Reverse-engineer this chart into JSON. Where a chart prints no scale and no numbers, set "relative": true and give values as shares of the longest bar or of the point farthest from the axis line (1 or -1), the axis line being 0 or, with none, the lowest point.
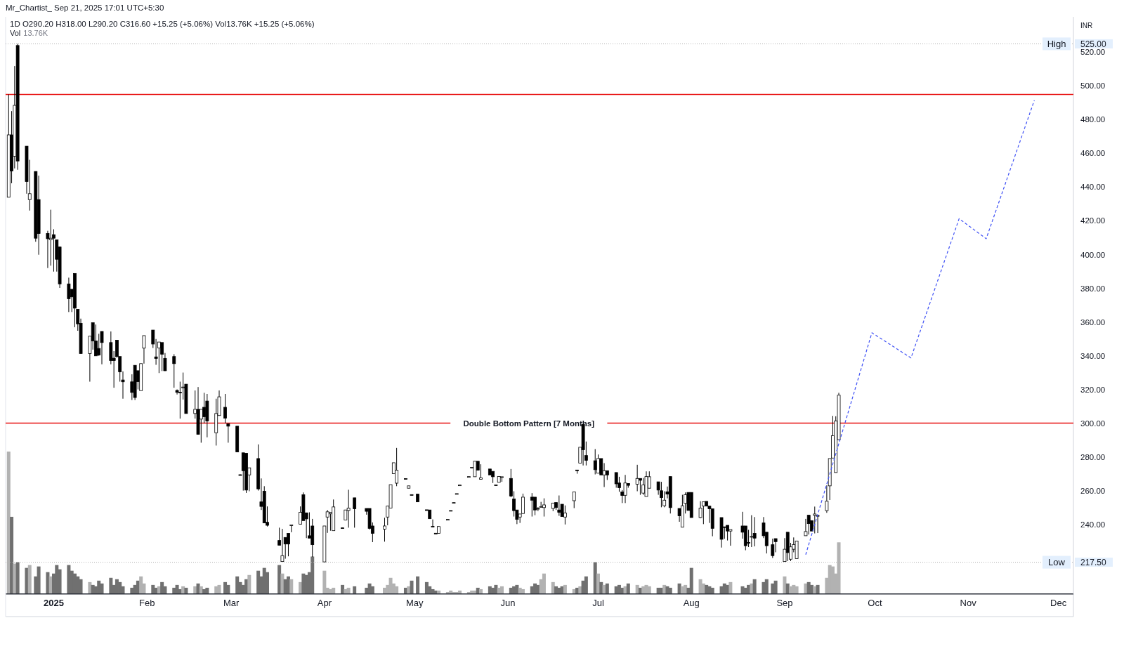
{
  "chart_data": [
    {
      "type": "candlestick",
      "title": "1D  O290.20  H318.00  L290.20  C316.60  +15.25 (+5.06%)  Vol13.76K  +15.25 (+5.06%)",
      "annotations": [
        "Mr_Chartist_ Sep 21, 2025 17:01 UTC+5:30"
      ],
      "ylabel": "INR",
      "x": [
        "2024-12-17",
        "2024-12-18",
        "2024-12-19",
        "2024-12-20",
        "2024-12-23",
        "2024-12-24",
        "2024-12-26",
        "2024-12-27",
        "2024-12-30",
        "2024-12-31",
        "2025-01-01",
        "2025-01-02",
        "2025-01-03",
        "2025-01-06",
        "2025-01-07",
        "2025-01-08",
        "2025-01-09",
        "2025-01-10",
        "2025-01-13",
        "2025-01-14",
        "2025-01-15",
        "2025-01-16",
        "2025-01-17",
        "2025-01-20",
        "2025-01-21",
        "2025-01-22",
        "2025-01-23",
        "2025-01-24",
        "2025-01-27",
        "2025-01-28",
        "2025-01-29",
        "2025-01-30",
        "2025-01-31",
        "2025-02-03",
        "2025-02-04",
        "2025-02-05",
        "2025-02-06",
        "2025-02-07",
        "2025-02-10",
        "2025-02-11",
        "2025-02-12",
        "2025-02-13",
        "2025-02-14",
        "2025-02-17",
        "2025-02-18",
        "2025-02-19",
        "2025-02-20",
        "2025-02-21",
        "2025-02-24",
        "2025-02-25",
        "2025-02-27",
        "2025-02-28",
        "2025-03-03",
        "2025-03-04",
        "2025-03-05",
        "2025-03-06",
        "2025-03-07",
        "2025-03-10",
        "2025-03-11",
        "2025-03-12",
        "2025-03-13",
        "2025-03-17",
        "2025-03-18",
        "2025-03-19",
        "2025-03-20",
        "2025-03-21",
        "2025-03-24",
        "2025-03-25",
        "2025-03-26",
        "2025-03-27",
        "2025-03-28",
        "2025-04-01",
        "2025-04-02",
        "2025-04-03",
        "2025-04-04",
        "2025-04-07",
        "2025-04-08",
        "2025-04-09",
        "2025-04-11",
        "2025-04-15",
        "2025-04-16",
        "2025-04-17",
        "2025-04-21",
        "2025-04-22",
        "2025-04-23",
        "2025-04-24",
        "2025-04-25",
        "2025-04-28",
        "2025-04-29",
        "2025-04-30",
        "2025-05-02",
        "2025-05-05",
        "2025-05-06",
        "2025-05-07",
        "2025-05-08",
        "2025-05-09",
        "2025-05-12",
        "2025-05-13",
        "2025-05-14",
        "2025-05-15",
        "2025-05-16",
        "2025-05-19",
        "2025-05-20",
        "2025-05-21",
        "2025-05-22",
        "2025-05-23",
        "2025-05-26",
        "2025-05-27",
        "2025-05-28",
        "2025-05-29",
        "2025-05-30",
        "2025-06-02",
        "2025-06-03",
        "2025-06-04",
        "2025-06-05",
        "2025-06-06",
        "2025-06-09",
        "2025-06-10",
        "2025-06-11",
        "2025-06-12",
        "2025-06-13",
        "2025-06-16",
        "2025-06-17",
        "2025-06-18",
        "2025-06-19",
        "2025-06-20",
        "2025-06-23",
        "2025-06-24",
        "2025-06-25",
        "2025-06-26",
        "2025-06-27",
        "2025-06-30",
        "2025-07-01",
        "2025-07-02",
        "2025-07-03",
        "2025-07-04",
        "2025-07-07",
        "2025-07-08",
        "2025-07-09",
        "2025-07-10",
        "2025-07-11",
        "2025-07-14",
        "2025-07-15",
        "2025-07-16",
        "2025-07-17",
        "2025-07-18",
        "2025-07-21",
        "2025-07-22",
        "2025-07-23",
        "2025-07-24",
        "2025-07-25",
        "2025-07-28",
        "2025-07-29",
        "2025-07-30",
        "2025-07-31",
        "2025-08-01",
        "2025-08-04",
        "2025-08-05",
        "2025-08-06",
        "2025-08-07",
        "2025-08-08",
        "2025-08-11",
        "2025-08-12",
        "2025-08-13",
        "2025-08-14",
        "2025-08-18",
        "2025-08-19",
        "2025-08-20",
        "2025-08-21",
        "2025-08-22",
        "2025-08-25",
        "2025-08-26",
        "2025-08-28",
        "2025-08-29",
        "2025-09-01",
        "2025-09-02",
        "2025-09-03",
        "2025-09-04",
        "2025-09-05",
        "2025-09-08",
        "2025-09-09",
        "2025-09-10",
        "2025-09-11",
        "2025-09-12",
        "2025-09-15",
        "2025-09-16",
        "2025-09-17",
        "2025-09-18",
        "2025-09-19"
      ],
      "xlim": [
        "2024-12-16",
        "2025-12-06"
      ],
      "xticks": [
        {
          "value": "2025-01-01",
          "label": "2025"
        },
        {
          "value": "2025-02-01",
          "label": "Feb"
        },
        {
          "value": "2025-03-01",
          "label": "Mar"
        },
        {
          "value": "2025-04-01",
          "label": "Apr"
        },
        {
          "value": "2025-05-01",
          "label": "May"
        },
        {
          "value": "2025-06-01",
          "label": "Jun"
        },
        {
          "value": "2025-07-01",
          "label": "Jul"
        },
        {
          "value": "2025-08-01",
          "label": "Aug"
        },
        {
          "value": "2025-09-01",
          "label": "Sep"
        },
        {
          "value": "2025-10-01",
          "label": "Oct"
        },
        {
          "value": "2025-11-01",
          "label": "Nov"
        },
        {
          "value": "2025-12-01",
          "label": "Dec"
        }
      ],
      "ylim": [
        199,
        541
      ],
      "yticks": [
        {
          "value": 217.5,
          "label": "217.50"
        },
        {
          "value": 240,
          "label": "240.00"
        },
        {
          "value": 260,
          "label": "260.00"
        },
        {
          "value": 280,
          "label": "280.00"
        },
        {
          "value": 300,
          "label": "300.00"
        },
        {
          "value": 320,
          "label": "320.00"
        },
        {
          "value": 340,
          "label": "340.00"
        },
        {
          "value": 360,
          "label": "360.00"
        },
        {
          "value": 380,
          "label": "380.00"
        },
        {
          "value": 400,
          "label": "400.00"
        },
        {
          "value": 420,
          "label": "420.00"
        },
        {
          "value": 440,
          "label": "440.00"
        },
        {
          "value": 460,
          "label": "460.00"
        },
        {
          "value": 480,
          "label": "480.00"
        },
        {
          "value": 500,
          "label": "500.00"
        },
        {
          "value": 520,
          "label": "520.00"
        },
        {
          "value": 525,
          "label": "525.00"
        }
      ],
      "ref_lines": [
        {
          "axis": "y",
          "value": 495,
          "color": "#e81010"
        },
        {
          "axis": "y",
          "value": 300,
          "label": "Double Bottom Pattern [7 Months]",
          "color": "#e81010"
        },
        {
          "axis": "y",
          "value": 525,
          "label": "High",
          "color": "#b0b0b0",
          "line_style": "dotted"
        },
        {
          "axis": "y",
          "value": 217.5,
          "label": "Low",
          "color": "#b0b0b0",
          "line_style": "dotted"
        }
      ],
      "series": [
        {
          "type": "candlestick",
          "color": "#000000",
          "ohlc": [
            [
              434,
              495,
              434,
              471
            ],
            [
              471,
              485.1,
              442.3,
              449.6
            ],
            [
              458.3,
              511.8,
              451.1,
              488.5
            ],
            [
              524,
              525,
              450.3,
              455.5
            ],
            [
              464.3,
              464.3,
              436.1,
              443.3
            ],
            [
              432.6,
              456.2,
              426.1,
              436.1
            ],
            [
              449.3,
              449.3,
              407.6,
              409.7
            ],
            [
              432.6,
              446.8,
              399.9,
              412.5
            ],
            [
              412.5,
              414.1,
              392,
              409.4
            ],
            [
              408.7,
              426.6,
              393.4,
              409.7
            ],
            [
              411.8,
              415,
              389.9,
              409.7
            ],
            [
              408.7,
              408.7,
              389.9,
              397.2
            ],
            [
              404.5,
              404.5,
              380.2,
              382.6
            ],
            [
              382.6,
              386.3,
              365.9,
              373.8
            ],
            [
              379.4,
              379.4,
              365.9,
              374.9
            ],
            [
              388.8,
              388.8,
              356.9,
              368.2
            ],
            [
              367.5,
              367.5,
              354.8,
              358.9
            ],
            [
              359.2,
              362,
              341.3,
              341.3
            ],
            [
              341.3,
              351.6,
              324.6,
              351.6
            ],
            [
              359.6,
              359.6,
              343.6,
              348.8
            ],
            [
              348.8,
              358.5,
              339.9,
              339.9
            ],
            [
              344.3,
              353,
              339.9,
              340.4
            ],
            [
              354.4,
              354.4,
              334.9,
              347.8
            ],
            [
              347.8,
              354.4,
              334.9,
              337.1
            ],
            [
              338.5,
              342.7,
              321,
              337.1
            ],
            [
              349.2,
              349.2,
              338.8,
              339.5
            ],
            [
              339.5,
              339.5,
              324.6,
              330.4
            ],
            [
              325.6,
              330.7,
              314.5,
              324.5
            ],
            [
              324.5,
              329,
              313.7,
              318.2
            ],
            [
              334.3,
              334.3,
              313.7,
              315.2
            ],
            [
              331.1,
              331.1,
              320,
              324.6
            ],
            [
              319.3,
              335.3,
              319.3,
              335.3
            ],
            [
              344.5,
              351.9,
              335.3,
              351.9
            ],
            [
              355.2,
              355.2,
              344.6,
              346.9
            ],
            [
              339.3,
              349.9,
              334.6,
              338.4
            ],
            [
              344.6,
              348.1,
              329.7,
              348.1
            ],
            [
              347.8,
              347.8,
              330.9,
              340.9
            ],
            [
              338.4,
              341.6,
              330.9,
              331.1
            ],
            [
              339.5,
              340.9,
              321,
              335.3
            ],
            [
              319.4,
              320,
              317,
              318.3
            ],
            [
              318.4,
              324.6,
              302.7,
              318.2
            ],
            [
              321.2,
              330,
              314,
              321.4
            ],
            [
              323.1,
              323.1,
              305.7,
              305.7
            ],
            [
              305.7,
              319.4,
              302.7,
              308.2
            ],
            [
              308.2,
              321.4,
              293.4,
              293.4
            ],
            [
              302.4,
              308.2,
              288.4,
              308.2
            ],
            [
              309.4,
              318,
              299.9,
              303.8
            ],
            [
              313.1,
              317.3,
              291.6,
              301.3
            ],
            [
              294.3,
              314.5,
              286.7,
              305.7
            ],
            [
              304.5,
              319.4,
              304.5,
              315.6
            ],
            [
              309.4,
              317.3,
              299.9,
              303
            ],
            [
              299.6,
              299.6,
              288.4,
              298.2
            ],
            [
              298.2,
              298.2,
              282.9,
              282.9
            ],
            [
              269.4,
              269.6,
              269,
              269.2
            ],
            [
              282.4,
              282.4,
              260,
              271.8
            ],
            [
              282.1,
              282.1,
              258.6,
              260.3
            ],
            [
              269.3,
              273.5,
              259.6,
              273.5
            ],
            [
              279,
              287.4,
              260,
              261
            ],
            [
              253.3,
              267.2,
              248.5,
              250.6
            ],
            [
              259.6,
              262.6,
              240.8,
              240.8
            ],
            [
              241.2,
              250.6,
              238.7,
              239.4
            ],
            [
              230.4,
              238,
              227.6,
              227.6
            ],
            [
              217.9,
              237.3,
              217.9,
              221.4
            ],
            [
              232.2,
              232.2,
              219.6,
              228.3
            ],
            [
              234.6,
              234.6,
              221,
              228.3
            ],
            [
              239.2,
              239.6,
              235.3,
              239.6
            ],
            [
              240.1,
              250.6,
              240.1,
              247.1
            ],
            [
              257.5,
              258.9,
              242.2,
              242.2
            ],
            [
              246.8,
              246.8,
              231.8,
              243.2
            ],
            [
              233.2,
              247.1,
              231.8,
              231.8
            ],
            [
              239,
              243.2,
              220.6,
              227.9
            ],
            [
              217.7,
              239,
              217.5,
              239
            ],
            [
              244.3,
              248.5,
              234.9,
              247.4
            ],
            [
              246.2,
              247.1,
              236.2,
              247.1
            ],
            [
              236.2,
              254.7,
              236.2,
              250.3
            ],
            [
              237.9,
              237.9,
              237.7,
              237.7
            ],
            [
              242.5,
              248.5,
              242.5,
              248.5
            ],
            [
              248.2,
              260.5,
              238,
              249.6
            ],
            [
              255.7,
              255.7,
              238,
              249.2
            ],
            [
              249.4,
              249.4,
              245.7,
              247.7
            ],
            [
              249.4,
              249.4,
              236.9,
              237.6
            ],
            [
              239,
              241.1,
              229.4,
              234.6
            ],
            [
              237.1,
              243.9,
              229.7,
              239
            ],
            [
              244.3,
              250.8,
              239.4,
              250.8
            ],
            [
              249.6,
              263.5,
              249.6,
              263.5
            ],
            [
              270,
              276.5,
              270,
              276.5
            ],
            [
              264.4,
              285.3,
              262.6,
              272.1
            ],
            [
              267.1,
              267.1,
              266.9,
              266.9
            ],
            [
              261.4,
              262.8,
              261.4,
              262.8
            ],
            [
              257.6,
              257.6,
              257.5,
              257.5
            ],
            [
              257.9,
              257.9,
              253.3,
              253.3
            ],
            [
              248.6,
              248.6,
              248.5,
              248.5
            ],
            [
              248.5,
              248.5,
              243.3,
              243.3
            ],
            [
              238.8,
              242.9,
              238.7,
              238.7
            ],
            [
              234.7,
              234.7,
              234.6,
              234.6
            ],
            [
              234.6,
              238.7,
              234.6,
              238.7
            ],
            [
              242.8,
              242.9,
              242.8,
              242.9
            ],
            [
              248.1,
              248.2,
              248.1,
              248.2
            ],
            [
              252.8,
              252.9,
              252.8,
              252.9
            ],
            [
              258.1,
              258.2,
              258.1,
              258.2
            ],
            [
              263.2,
              263.3,
              263.2,
              263.3
            ],
            [
              268.2,
              268.3,
              268.2,
              268.3
            ],
            [
              273.7,
              273.8,
              273.7,
              273.8
            ],
            [
              268.2,
              277.4,
              268.2,
              277.4
            ],
            [
              277.4,
              277.4,
              272.1,
              272.1
            ],
            [
              266.7,
              275.6,
              266.5,
              267.5
            ],
            [
              272.8,
              272.8,
              269.3,
              269.3
            ],
            [
              271.4,
              271.4,
              264.5,
              268.2
            ],
            [
              263.4,
              263.4,
              263.3,
              263.3
            ],
            [
              264.9,
              268.4,
              264.9,
              268.4
            ],
            [
              268,
              268.2,
              265.2,
              268.2
            ],
            [
              267.2,
              272.8,
              256.1,
              256.8
            ],
            [
              255,
              259.6,
              244.6,
              248.1
            ],
            [
              248.5,
              248.5,
              240.1,
              242.9
            ],
            [
              244.3,
              246.1,
              240.8,
              246.1
            ],
            [
              246.4,
              258.2,
              246.4,
              256.1
            ],
            [
              256.1,
              258.5,
              244.6,
              254.3
            ],
            [
              256.1,
              256.1,
              245.4,
              248.5
            ],
            [
              249.4,
              250.2,
              247.8,
              249.2
            ],
            [
              250.4,
              253.3,
              250.4,
              250.5
            ],
            [
              249.9,
              255.4,
              244.6,
              251.5
            ],
            [
              249.4,
              252.6,
              247.8,
              252.6
            ],
            [
              252.9,
              252.9,
              248.5,
              249.9
            ],
            [
              248.5,
              257.1,
              245,
              247.1
            ],
            [
              251.9,
              251.9,
              244.6,
              244.6
            ],
            [
              244.3,
              251.2,
              239.9,
              246.7
            ],
            [
              254,
              259.2,
              249.6,
              259.2
            ],
            [
              272.2,
              272.2,
              270,
              272.1
            ],
            [
              276.3,
              285.7,
              276.3,
              285.7
            ],
            [
              299.2,
              299.2,
              274.9,
              284.2
            ],
            [
              280.8,
              289.1,
              274.9,
              277.9
            ],
            [
              277.7,
              284.6,
              269.6,
              272.4
            ],
            [
              270.3,
              281.4,
              270.3,
              279
            ],
            [
              279,
              279,
              269.3,
              269.3
            ],
            [
              269.3,
              276.3,
              262.1,
              271.8
            ],
            [
              271.8,
              271.8,
              266.3,
              269.3
            ],
            [
              270.7,
              270.7,
              261.7,
              264
            ],
            [
              264.5,
              268.2,
              259.3,
              261.7
            ],
            [
              259.2,
              260.3,
              252.6,
              257.1
            ],
            [
              257.2,
              269.3,
              252.6,
              264.5
            ],
            [
              264.2,
              264.2,
              261.7,
              263.1
            ],
            [
              263.8,
              275.3,
              259.6,
              267.2
            ],
            [
              267.2,
              267.2,
              257.5,
              266.1
            ],
            [
              258.5,
              267.5,
              257.5,
              263.3
            ],
            [
              256.5,
              271.4,
              256.5,
              268.3
            ],
            [
              261.4,
              271.4,
              261.4,
              268.2
            ],
            [
              265.2,
              265.2,
              257.5,
              260.3
            ],
            [
              259.9,
              265.2,
              250.1,
              255.8
            ],
            [
              251,
              259.6,
              250.1,
              254.3
            ],
            [
              259.3,
              262.4,
              255.4,
              257.9
            ],
            [
              268.3,
              268.3,
              246.4,
              249.9
            ],
            [
              249.4,
              249.4,
              241.5,
              245
            ],
            [
              238.3,
              257.5,
              238.3,
              251
            ],
            [
              252.4,
              258.9,
              246.4,
              257.5
            ],
            [
              258.9,
              258.9,
              248.2,
              248.2
            ],
            [
              258.9,
              258.9,
              244,
              244
            ],
            [
              244,
              253.7,
              243.6,
              249.6
            ],
            [
              250.8,
              253.3,
              240.1,
              253.3
            ],
            [
              253.6,
              253.6,
              250.8,
              250.8
            ],
            [
              250.8,
              250.8,
              240.8,
              249.2
            ],
            [
              249.2,
              249.2,
              232.9,
              237.6
            ],
            [
              244,
              244,
              226.2,
              231.1
            ],
            [
              238.5,
              238.5,
              231.4,
              238.3
            ],
            [
              239.4,
              239.4,
              230.4,
              236
            ],
            [
              236,
              236.9,
              227.3,
              236.9
            ],
            [
              239,
              247.4,
              231.5,
              235.3
            ],
            [
              239,
              239,
              224.6,
              227.3
            ],
            [
              229.2,
              236.7,
              226.5,
              229
            ],
            [
              232.6,
              245.4,
              226.5,
              232.8
            ],
            [
              234.6,
              244.3,
              226.9,
              231.8
            ],
            [
              240.8,
              244.3,
              231.8,
              233.2
            ],
            [
              235.3,
              235.3,
              222.7,
              227.3
            ],
            [
              227.9,
              231.5,
              220,
              221.4
            ],
            [
              231.5,
              231.5,
              223.4,
              229.7
            ],
            [
              217.9,
              231.8,
              217.9,
              225.2
            ],
            [
              235.3,
              235.3,
              218.2,
              223.2
            ],
            [
              219.3,
              229,
              218.2,
              226.6
            ],
            [
              225.2,
              232.2,
              223.4,
              228
            ],
            [
              219.6,
              230.1,
              219.6,
              230.1
            ],
            [
              233.2,
              243.2,
              233.2,
              235.7
            ],
            [
              245.4,
              245.4,
              233.9,
              240.4
            ],
            [
              242.2,
              242.2,
              236,
              236
            ],
            [
              245.3,
              250.5,
              234.6,
              246.1
            ],
            [
              245.2,
              245.2,
              234.8,
              245
            ],
            [
              248.1,
              263.1,
              246.8,
              253.7
            ],
            [
              262.8,
              279,
              254.4,
              279
            ],
            [
              279.3,
              304.3,
              279.3,
              292.5
            ],
            [
              270.7,
              304.1,
              270.7,
              301.35
            ],
            [
              290.2,
              318,
              290.2,
              316.6
            ]
          ]
        },
        {
          "type": "line",
          "color": "#3f51f5",
          "line_style": "dashed",
          "x": [
            "2025-09-08",
            "2025-09-30",
            "2025-10-13",
            "2025-10-29",
            "2025-11-07",
            "2025-11-23"
          ],
          "values": [
            222,
            353.6,
            338.7,
            421.3,
            409.4,
            491.5
          ]
        }
      ]
    },
    {
      "type": "bar",
      "title": "Vol 13.76K",
      "relative": true,
      "xlim": [
        "2024-12-16",
        "2025-12-06"
      ],
      "x": [
        "2024-12-17",
        "2024-12-18",
        "2024-12-19",
        "2024-12-20",
        "2024-12-23",
        "2024-12-24",
        "2024-12-26",
        "2024-12-27",
        "2024-12-30",
        "2024-12-31",
        "2025-01-01",
        "2025-01-02",
        "2025-01-03",
        "2025-01-06",
        "2025-01-07",
        "2025-01-08",
        "2025-01-09",
        "2025-01-10",
        "2025-01-13",
        "2025-01-14",
        "2025-01-15",
        "2025-01-16",
        "2025-01-17",
        "2025-01-20",
        "2025-01-21",
        "2025-01-22",
        "2025-01-23",
        "2025-01-24",
        "2025-01-27",
        "2025-01-28",
        "2025-01-29",
        "2025-01-30",
        "2025-01-31",
        "2025-02-03",
        "2025-02-04",
        "2025-02-05",
        "2025-02-06",
        "2025-02-07",
        "2025-02-10",
        "2025-02-11",
        "2025-02-12",
        "2025-02-13",
        "2025-02-14",
        "2025-02-17",
        "2025-02-18",
        "2025-02-19",
        "2025-02-20",
        "2025-02-21",
        "2025-02-24",
        "2025-02-25",
        "2025-02-27",
        "2025-02-28",
        "2025-03-03",
        "2025-03-04",
        "2025-03-05",
        "2025-03-06",
        "2025-03-07",
        "2025-03-10",
        "2025-03-11",
        "2025-03-12",
        "2025-03-13",
        "2025-03-17",
        "2025-03-18",
        "2025-03-19",
        "2025-03-20",
        "2025-03-21",
        "2025-03-24",
        "2025-03-25",
        "2025-03-26",
        "2025-03-27",
        "2025-03-28",
        "2025-04-01",
        "2025-04-02",
        "2025-04-03",
        "2025-04-04",
        "2025-04-07",
        "2025-04-08",
        "2025-04-09",
        "2025-04-11",
        "2025-04-15",
        "2025-04-16",
        "2025-04-17",
        "2025-04-21",
        "2025-04-22",
        "2025-04-23",
        "2025-04-24",
        "2025-04-25",
        "2025-04-28",
        "2025-04-29",
        "2025-04-30",
        "2025-05-02",
        "2025-05-05",
        "2025-05-06",
        "2025-05-07",
        "2025-05-08",
        "2025-05-09",
        "2025-05-12",
        "2025-05-13",
        "2025-05-14",
        "2025-05-15",
        "2025-05-16",
        "2025-05-19",
        "2025-05-20",
        "2025-05-21",
        "2025-05-22",
        "2025-05-23",
        "2025-05-26",
        "2025-05-27",
        "2025-05-28",
        "2025-05-29",
        "2025-05-30",
        "2025-06-02",
        "2025-06-03",
        "2025-06-04",
        "2025-06-05",
        "2025-06-06",
        "2025-06-09",
        "2025-06-10",
        "2025-06-11",
        "2025-06-12",
        "2025-06-13",
        "2025-06-16",
        "2025-06-17",
        "2025-06-18",
        "2025-06-19",
        "2025-06-20",
        "2025-06-23",
        "2025-06-24",
        "2025-06-25",
        "2025-06-26",
        "2025-06-27",
        "2025-06-30",
        "2025-07-01",
        "2025-07-02",
        "2025-07-03",
        "2025-07-04",
        "2025-07-07",
        "2025-07-08",
        "2025-07-09",
        "2025-07-10",
        "2025-07-11",
        "2025-07-14",
        "2025-07-15",
        "2025-07-16",
        "2025-07-17",
        "2025-07-18",
        "2025-07-21",
        "2025-07-22",
        "2025-07-23",
        "2025-07-24",
        "2025-07-25",
        "2025-07-28",
        "2025-07-29",
        "2025-07-30",
        "2025-07-31",
        "2025-08-01",
        "2025-08-04",
        "2025-08-05",
        "2025-08-06",
        "2025-08-07",
        "2025-08-08",
        "2025-08-11",
        "2025-08-12",
        "2025-08-13",
        "2025-08-14",
        "2025-08-18",
        "2025-08-19",
        "2025-08-20",
        "2025-08-21",
        "2025-08-22",
        "2025-08-25",
        "2025-08-26",
        "2025-08-28",
        "2025-08-29",
        "2025-09-01",
        "2025-09-02",
        "2025-09-03",
        "2025-09-04",
        "2025-09-05",
        "2025-09-08",
        "2025-09-09",
        "2025-09-10",
        "2025-09-11",
        "2025-09-12",
        "2025-09-15",
        "2025-09-16",
        "2025-09-17",
        "2025-09-18",
        "2025-09-19"
      ],
      "values": [
        1,
        0.54,
        0.21,
        0.22,
        0.18,
        0.2,
        0.12,
        0.19,
        0.15,
        0.12,
        0.14,
        0.2,
        0.17,
        0.2,
        0.16,
        0.14,
        0.12,
        0.1,
        0.08,
        0.06,
        0.05,
        0.09,
        0.07,
        0.11,
        0.06,
        0.1,
        0.08,
        0.05,
        0.04,
        0.06,
        0.09,
        0.12,
        0.07,
        0.06,
        0.04,
        0.05,
        0.08,
        0.05,
        0.04,
        0.06,
        0.03,
        0.05,
        0.04,
        0.05,
        0.07,
        0.05,
        0.03,
        0.04,
        0.05,
        0.06,
        0.08,
        0.06,
        0.12,
        0.08,
        0.06,
        0.1,
        0.13,
        0.16,
        0.12,
        0.18,
        0.15,
        0.2,
        0.14,
        0.1,
        0.12,
        0.1,
        0.08,
        0.14,
        0.13,
        0.15,
        0.26,
        0.16,
        0.04,
        0.03,
        0.04,
        0.06,
        0.03,
        0.04,
        0.05,
        0.04,
        0.07,
        0.05,
        0.04,
        0.06,
        0.11,
        0.07,
        0.05,
        0.04,
        0.05,
        0.09,
        0.12,
        0.08,
        0.05,
        0.03,
        0.02,
        0.02,
        0.01,
        0.02,
        0.01,
        0.01,
        0.02,
        0.01,
        0.02,
        0.02,
        0.04,
        0.03,
        0.05,
        0.04,
        0.06,
        0.04,
        0.05,
        0.04,
        0.05,
        0.06,
        0.04,
        0.03,
        0.05,
        0.07,
        0.06,
        0.1,
        0.14,
        0.08,
        0.05,
        0.04,
        0.05,
        0.06,
        0.03,
        0.04,
        0.05,
        0.09,
        0.12,
        0.22,
        0.14,
        0.08,
        0.06,
        0.07,
        0.05,
        0.06,
        0.04,
        0.05,
        0.07,
        0.06,
        0.04,
        0.05,
        0.06,
        0.05,
        0.04,
        0.04,
        0.06,
        0.05,
        0.04,
        0.07,
        0.05,
        0.06,
        0.04,
        0.18,
        0.1,
        0.07,
        0.06,
        0.05,
        0.04,
        0.05,
        0.07,
        0.06,
        0.08,
        0.05,
        0.04,
        0.06,
        0.07,
        0.1,
        0.08,
        0.1,
        0.07,
        0.09,
        0.12,
        0.07,
        0.05,
        0.06,
        0.05,
        0.07,
        0.08,
        0.06,
        0.05,
        0.06,
        0.11,
        0.2,
        0.19,
        0.14,
        0.36
      ],
      "colors": [
        "#b2b2b2",
        "#707070",
        "#b2b2b2",
        "#707070",
        "#707070",
        "#b2b2b2",
        "#707070",
        "#707070",
        "#707070",
        "#b2b2b2",
        "#707070",
        "#707070",
        "#707070",
        "#707070",
        "#707070",
        "#707070",
        "#707070",
        "#707070",
        "#b2b2b2",
        "#707070",
        "#707070",
        "#707070",
        "#707070",
        "#707070",
        "#707070",
        "#707070",
        "#707070",
        "#707070",
        "#707070",
        "#707070",
        "#707070",
        "#b2b2b2",
        "#b2b2b2",
        "#707070",
        "#707070",
        "#b2b2b2",
        "#707070",
        "#707070",
        "#707070",
        "#707070",
        "#707070",
        "#b2b2b2",
        "#707070",
        "#b2b2b2",
        "#707070",
        "#b2b2b2",
        "#707070",
        "#707070",
        "#b2b2b2",
        "#b2b2b2",
        "#707070",
        "#707070",
        "#707070",
        "#707070",
        "#707070",
        "#707070",
        "#b2b2b2",
        "#707070",
        "#707070",
        "#707070",
        "#707070",
        "#707070",
        "#b2b2b2",
        "#707070",
        "#707070",
        "#b2b2b2",
        "#b2b2b2",
        "#707070",
        "#707070",
        "#707070",
        "#707070",
        "#b2b2b2",
        "#b2b2b2",
        "#b2b2b2",
        "#b2b2b2",
        "#707070",
        "#b2b2b2",
        "#b2b2b2",
        "#707070",
        "#707070",
        "#707070",
        "#707070",
        "#b2b2b2",
        "#b2b2b2",
        "#b2b2b2",
        "#b2b2b2",
        "#b2b2b2",
        "#707070",
        "#b2b2b2",
        "#707070",
        "#707070",
        "#707070",
        "#707070",
        "#707070",
        "#707070",
        "#b2b2b2",
        "#b2b2b2",
        "#b2b2b2",
        "#b2b2b2",
        "#b2b2b2",
        "#b2b2b2",
        "#b2b2b2",
        "#b2b2b2",
        "#b2b2b2",
        "#707070",
        "#b2b2b2",
        "#707070",
        "#707070",
        "#707070",
        "#b2b2b2",
        "#b2b2b2",
        "#707070",
        "#707070",
        "#707070",
        "#b2b2b2",
        "#b2b2b2",
        "#707070",
        "#707070",
        "#707070",
        "#b2b2b2",
        "#b2b2b2",
        "#b2b2b2",
        "#707070",
        "#707070",
        "#707070",
        "#b2b2b2",
        "#b2b2b2",
        "#707070",
        "#b2b2b2",
        "#707070",
        "#707070",
        "#707070",
        "#b2b2b2",
        "#707070",
        "#b2b2b2",
        "#707070",
        "#707070",
        "#707070",
        "#707070",
        "#b2b2b2",
        "#707070",
        "#b2b2b2",
        "#707070",
        "#b2b2b2",
        "#b2b2b2",
        "#b2b2b2",
        "#707070",
        "#707070",
        "#b2b2b2",
        "#707070",
        "#707070",
        "#707070",
        "#b2b2b2",
        "#b2b2b2",
        "#707070",
        "#707070",
        "#b2b2b2",
        "#b2b2b2",
        "#707070",
        "#707070",
        "#707070",
        "#707070",
        "#707070",
        "#707070",
        "#b2b2b2",
        "#707070",
        "#707070",
        "#707070",
        "#b2b2b2",
        "#707070",
        "#707070",
        "#707070",
        "#707070",
        "#707070",
        "#b2b2b2",
        "#707070",
        "#b2b2b2",
        "#b2b2b2",
        "#b2b2b2",
        "#b2b2b2",
        "#707070",
        "#707070",
        "#b2b2b2",
        "#707070",
        "#b2b2b2",
        "#b2b2b2",
        "#b2b2b2",
        "#b2b2b2",
        "#b2b2b2"
      ]
    }
  ]
}
